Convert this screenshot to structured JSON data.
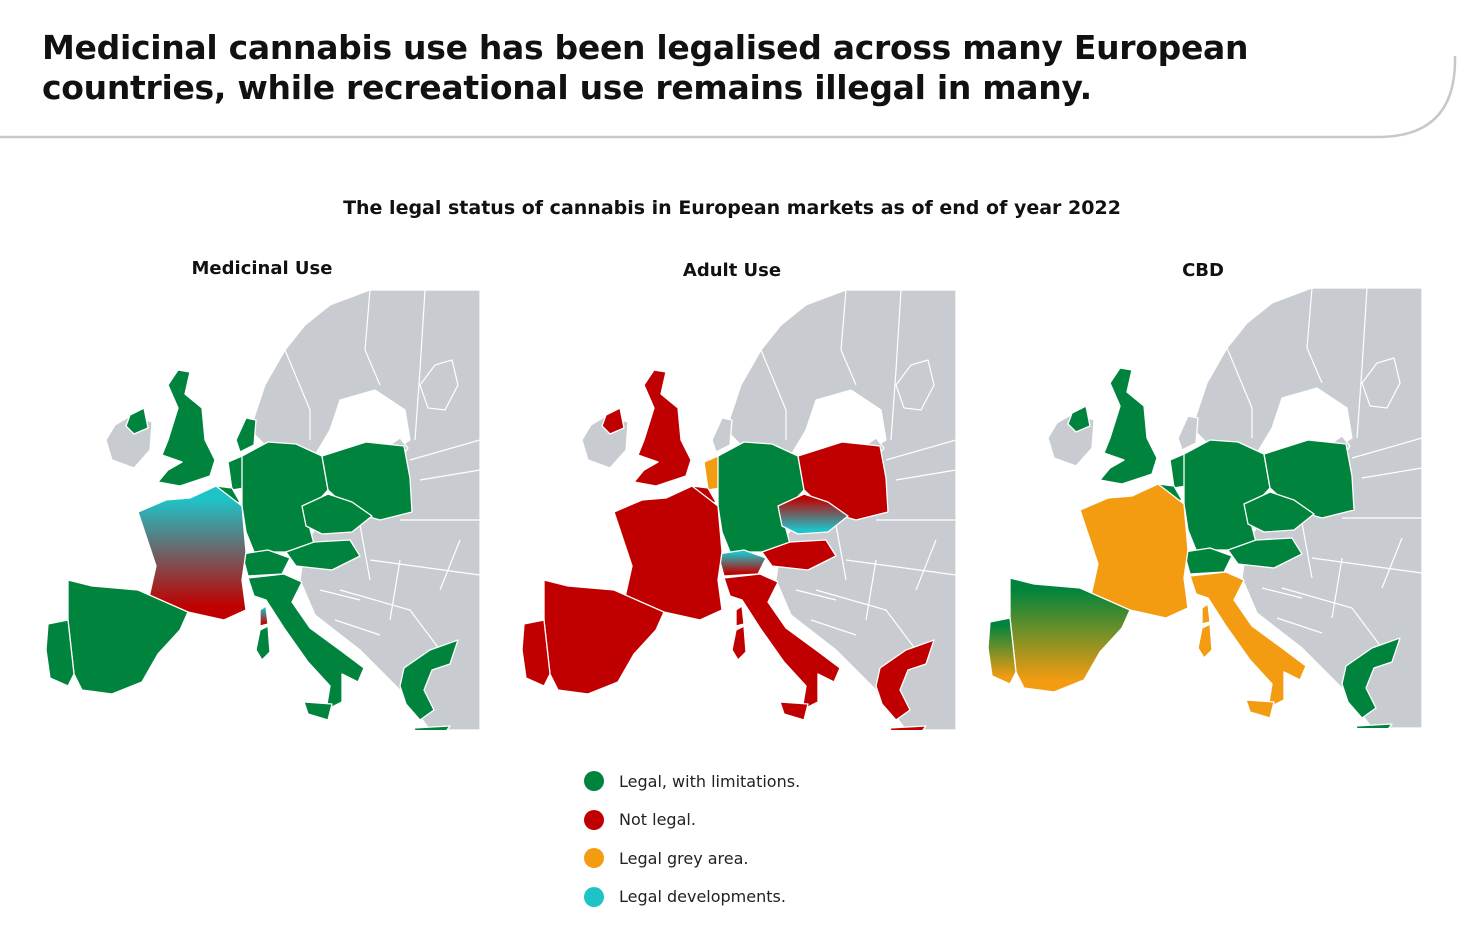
{
  "header": {
    "title": "Medicinal cannabis use has been legalised across many European countries, while recreational use remains illegal in many."
  },
  "figure": {
    "subtitle": "The legal status of cannabis in European markets as of end of year 2022"
  },
  "colors": {
    "legal": "#00843d",
    "not_legal": "#c00000",
    "grey_area": "#f39c12",
    "developments": "#1ec3c8",
    "other": "#c8cbd0"
  },
  "panels": [
    {
      "title": "Medicinal Use",
      "status": {
        "uk": "legal",
        "ireland": "legal",
        "netherlands": "legal",
        "belgium": "legal",
        "germany": "legal",
        "poland": "legal",
        "czechia": "legal",
        "austria": "legal",
        "switzerland": "legal",
        "france": "developments-to-not-legal",
        "spain": "legal",
        "portugal": "legal",
        "italy": "legal",
        "greece": "legal",
        "denmark": "legal"
      }
    },
    {
      "title": "Adult Use",
      "status": {
        "uk": "not_legal",
        "ireland": "not_legal",
        "netherlands": "grey_area",
        "belgium": "not_legal",
        "germany": "legal",
        "poland": "not_legal",
        "czechia": "not_legal-to-developments",
        "austria": "not_legal",
        "switzerland": "developments-to-not-legal",
        "france": "not_legal",
        "spain": "not_legal",
        "portugal": "not_legal",
        "italy": "not_legal",
        "greece": "not_legal",
        "denmark": "other"
      }
    },
    {
      "title": "CBD",
      "status": {
        "uk": "legal",
        "ireland": "legal",
        "netherlands": "legal",
        "belgium": "legal",
        "germany": "legal",
        "poland": "legal",
        "czechia": "legal",
        "austria": "legal",
        "switzerland": "legal",
        "france": "grey_area",
        "spain": "legal-to-grey_area",
        "portugal": "legal-to-grey_area",
        "italy": "grey_area",
        "greece": "legal",
        "denmark": "other"
      }
    }
  ],
  "legend": [
    {
      "label": "Legal, with limitations.",
      "color": "#00843d"
    },
    {
      "label": "Not legal.",
      "color": "#c00000"
    },
    {
      "label": "Legal grey area.",
      "color": "#f39c12"
    },
    {
      "label": "Legal developments.",
      "color": "#1ec3c8"
    }
  ]
}
